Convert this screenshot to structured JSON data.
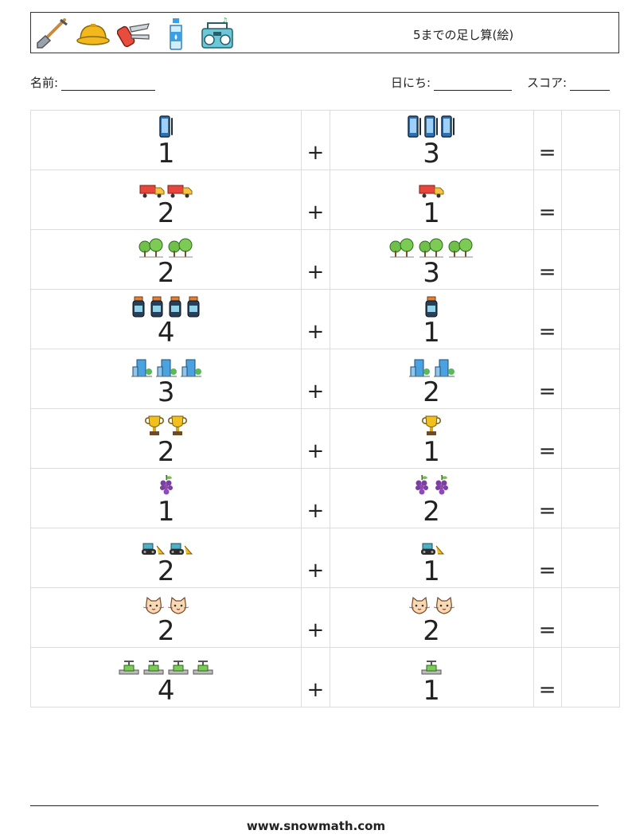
{
  "header": {
    "title": "5までの足し算(絵)",
    "icons": [
      "shovel-icon",
      "hard-hat-icon",
      "pocket-knife-icon",
      "water-bottle-icon",
      "radio-icon"
    ]
  },
  "meta": {
    "name_label": "名前:",
    "date_label": "日にち:",
    "score_label": "スコア:"
  },
  "operators": {
    "plus": "+",
    "equals": "="
  },
  "rows": [
    {
      "a": {
        "n": "1",
        "icon": "tablet"
      },
      "b": {
        "n": "3",
        "icon": "tablet"
      }
    },
    {
      "a": {
        "n": "2",
        "icon": "truck"
      },
      "b": {
        "n": "1",
        "icon": "truck"
      }
    },
    {
      "a": {
        "n": "2",
        "icon": "trees"
      },
      "b": {
        "n": "3",
        "icon": "trees"
      }
    },
    {
      "a": {
        "n": "4",
        "icon": "jar"
      },
      "b": {
        "n": "1",
        "icon": "jar"
      }
    },
    {
      "a": {
        "n": "3",
        "icon": "building"
      },
      "b": {
        "n": "2",
        "icon": "building"
      }
    },
    {
      "a": {
        "n": "2",
        "icon": "trophy"
      },
      "b": {
        "n": "1",
        "icon": "trophy"
      }
    },
    {
      "a": {
        "n": "1",
        "icon": "grapes"
      },
      "b": {
        "n": "2",
        "icon": "grapes"
      }
    },
    {
      "a": {
        "n": "2",
        "icon": "bulldozer"
      },
      "b": {
        "n": "1",
        "icon": "bulldozer"
      }
    },
    {
      "a": {
        "n": "2",
        "icon": "cat"
      },
      "b": {
        "n": "2",
        "icon": "cat"
      }
    },
    {
      "a": {
        "n": "4",
        "icon": "valve"
      },
      "b": {
        "n": "1",
        "icon": "valve"
      }
    }
  ],
  "footer": {
    "url": "www.snowmath.com"
  }
}
